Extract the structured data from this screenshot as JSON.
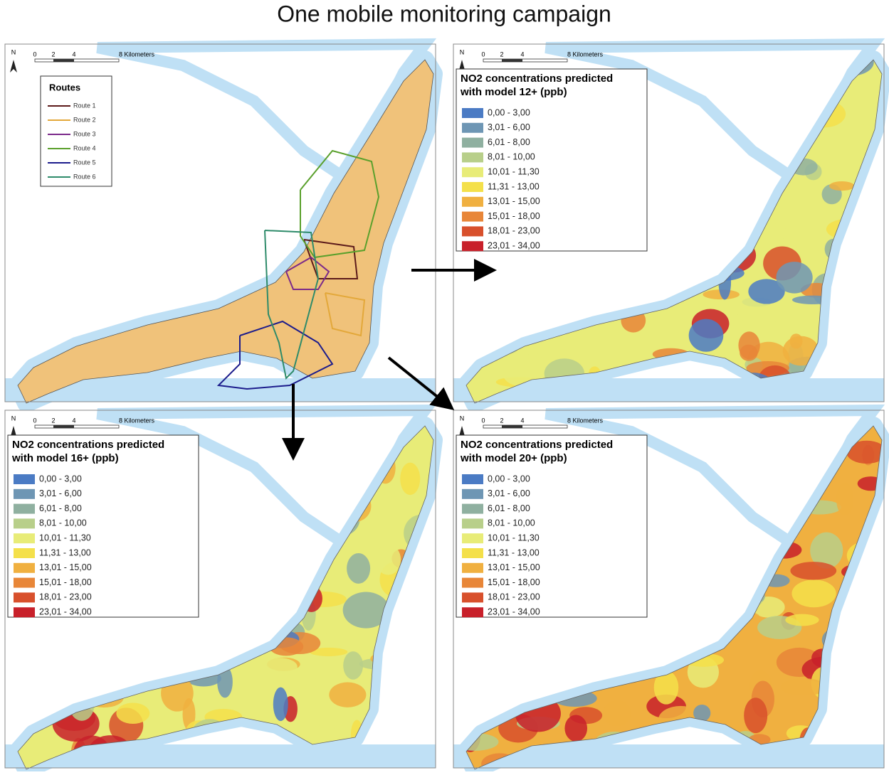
{
  "title": "One mobile monitoring campaign",
  "panels": [
    {
      "north": "N",
      "scale": [
        "0",
        "2",
        "4",
        "8 Kilometers"
      ],
      "legend": {
        "title": [
          "Routes"
        ],
        "items": [
          {
            "label": "Route 1",
            "color": "#5c1a1a"
          },
          {
            "label": "Route 2",
            "color": "#e3a83a"
          },
          {
            "label": "Route 3",
            "color": "#7b2a8a"
          },
          {
            "label": "Route 4",
            "color": "#5aa02c"
          },
          {
            "label": "Route 5",
            "color": "#1c1c8c"
          },
          {
            "label": "Route 6",
            "color": "#2e8b6a"
          }
        ]
      }
    },
    {
      "north": "N",
      "scale": [
        "0",
        "2",
        "4",
        "8 Kilometers"
      ],
      "legend": {
        "title": [
          "NO2 concentrations predicted",
          "with model 12+ (ppb)"
        ],
        "items": [
          {
            "label": "0,00 - 3,00",
            "color": "#4b7bc4"
          },
          {
            "label": "3,01 - 6,00",
            "color": "#6e96b4"
          },
          {
            "label": "6,01 - 8,00",
            "color": "#8fb0a0"
          },
          {
            "label": "8,01 - 10,00",
            "color": "#b8cf8a"
          },
          {
            "label": "10,01 - 11,30",
            "color": "#e8ec78"
          },
          {
            "label": "11,31 - 13,00",
            "color": "#f4e04a"
          },
          {
            "label": "13,01 - 15,00",
            "color": "#f0b040"
          },
          {
            "label": "15,01 - 18,00",
            "color": "#e88638"
          },
          {
            "label": "18,01 - 23,00",
            "color": "#d8502c"
          },
          {
            "label": "23,01 - 34,00",
            "color": "#c8202a"
          }
        ]
      }
    },
    {
      "north": "N",
      "scale": [
        "0",
        "2",
        "4",
        "8 Kilometers"
      ],
      "legend": {
        "title": [
          "NO2 concentrations predicted",
          "with model 16+ (ppb)"
        ],
        "items": [
          {
            "label": "0,00 - 3,00",
            "color": "#4b7bc4"
          },
          {
            "label": "3,01 - 6,00",
            "color": "#6e96b4"
          },
          {
            "label": "6,01 - 8,00",
            "color": "#8fb0a0"
          },
          {
            "label": "8,01 - 10,00",
            "color": "#b8cf8a"
          },
          {
            "label": "10,01 - 11,30",
            "color": "#e8ec78"
          },
          {
            "label": "11,31 - 13,00",
            "color": "#f4e04a"
          },
          {
            "label": "13,01 - 15,00",
            "color": "#f0b040"
          },
          {
            "label": "15,01 - 18,00",
            "color": "#e88638"
          },
          {
            "label": "18,01 - 23,00",
            "color": "#d8502c"
          },
          {
            "label": "23,01 - 34,00",
            "color": "#c8202a"
          }
        ]
      }
    },
    {
      "north": "N",
      "scale": [
        "0",
        "2",
        "4",
        "8 Kilometers"
      ],
      "legend": {
        "title": [
          "NO2 concentrations predicted",
          "with model 20+ (ppb)"
        ],
        "items": [
          {
            "label": "0,00 - 3,00",
            "color": "#4b7bc4"
          },
          {
            "label": "3,01 - 6,00",
            "color": "#6e96b4"
          },
          {
            "label": "6,01 - 8,00",
            "color": "#8fb0a0"
          },
          {
            "label": "8,01 - 10,00",
            "color": "#b8cf8a"
          },
          {
            "label": "10,01 - 11,30",
            "color": "#e8ec78"
          },
          {
            "label": "11,31 - 13,00",
            "color": "#f4e04a"
          },
          {
            "label": "13,01 - 15,00",
            "color": "#f0b040"
          },
          {
            "label": "15,01 - 18,00",
            "color": "#e88638"
          },
          {
            "label": "18,01 - 23,00",
            "color": "#d8502c"
          },
          {
            "label": "23,01 - 34,00",
            "color": "#c8202a"
          }
        ]
      }
    }
  ]
}
